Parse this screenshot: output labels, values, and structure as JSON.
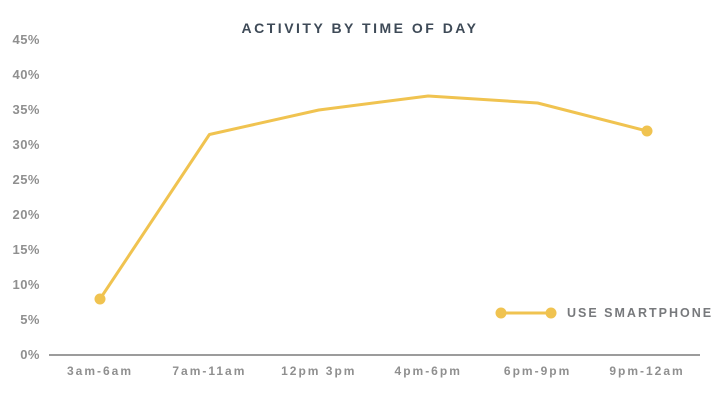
{
  "colors": {
    "background": "#FFFFFF",
    "series": "#F0C350",
    "title": "#3E4A57",
    "axis_labels": "#8F8F8F",
    "axis_line": "#9C9C9C",
    "legend_text": "#77797C"
  },
  "chart_data": {
    "type": "line",
    "title": "ACTIVITY BY TIME OF DAY",
    "categories": [
      "3am-6am",
      "7am-11am",
      "12pm 3pm",
      "4pm-6pm",
      "6pm-9pm",
      "9pm-12am"
    ],
    "series": [
      {
        "name": "USE SMARTPHONE",
        "values": [
          8,
          31.5,
          35,
          37,
          36,
          32
        ]
      }
    ],
    "xlabel": "",
    "ylabel": "",
    "ylim": [
      0,
      45
    ],
    "ytick_step": 5,
    "ytick_suffix": "%",
    "grid": false,
    "markers": "endpoints-only",
    "legend_position": "bottom-right"
  }
}
